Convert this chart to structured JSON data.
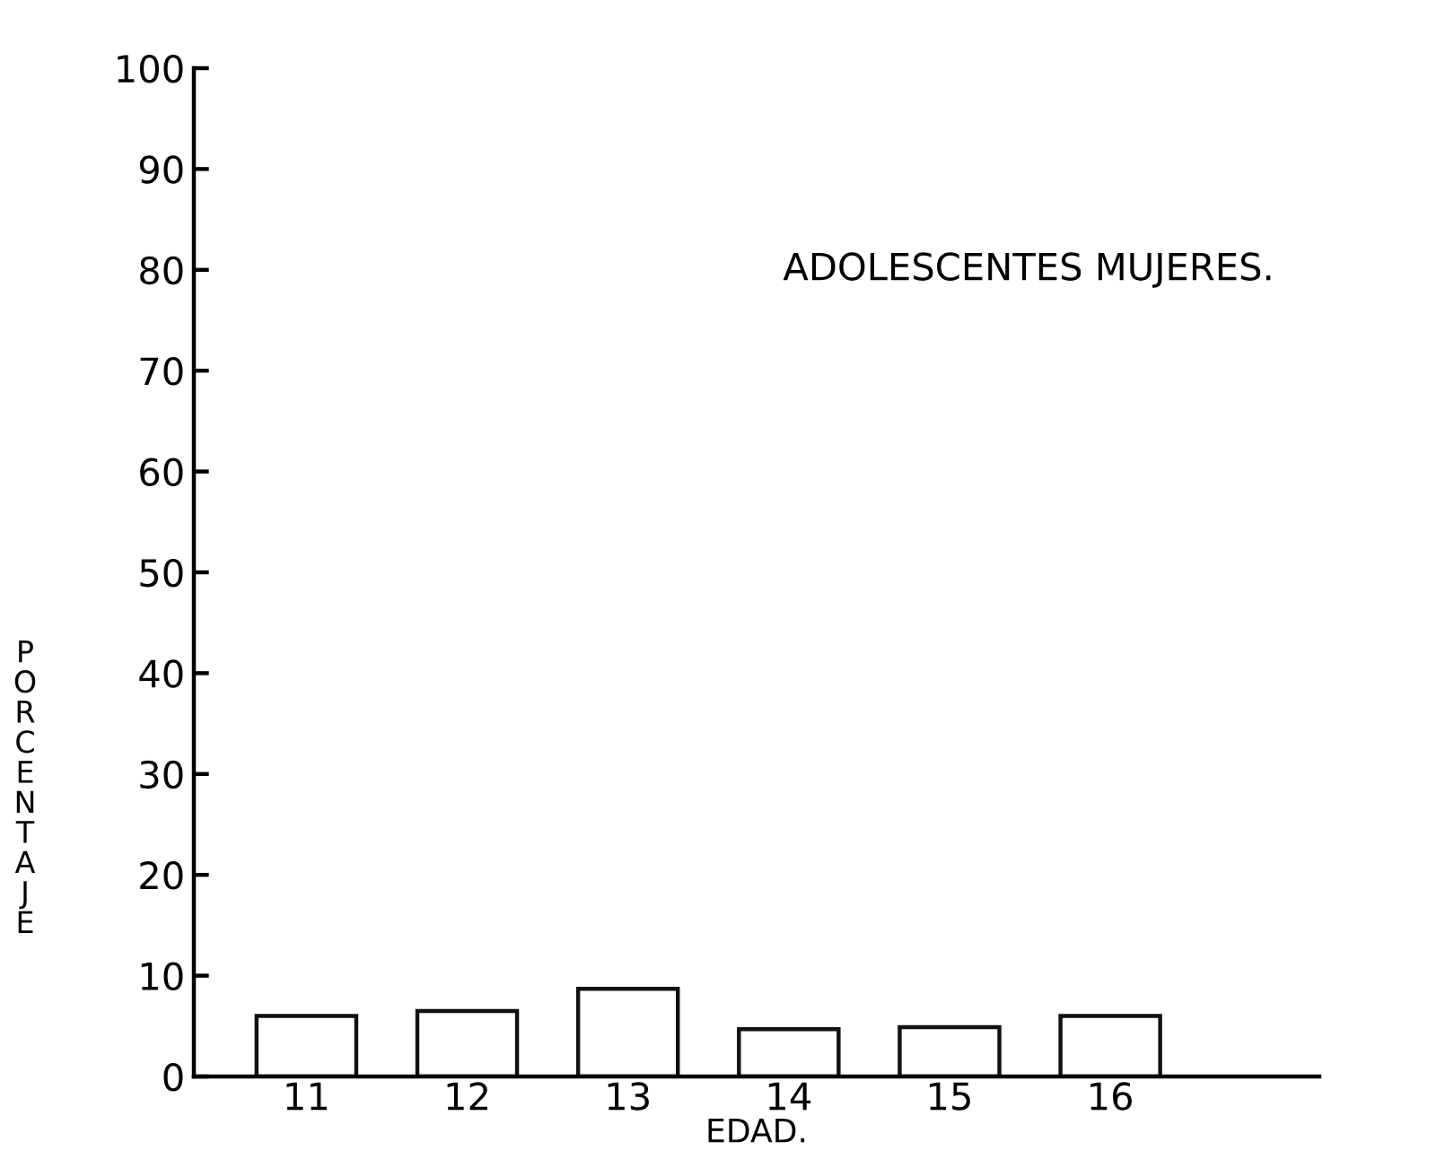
{
  "chart_data": {
    "type": "bar",
    "title": "ADOLESCENTES MUJERES.",
    "xlabel": "EDAD.",
    "ylabel": "PORCENTAJE",
    "categories": [
      "11",
      "12",
      "13",
      "14",
      "15",
      "16"
    ],
    "values": [
      6.0,
      6.5,
      8.7,
      4.7,
      4.9,
      6.0
    ],
    "color": "#ffffff",
    "ylim": [
      0,
      100
    ],
    "yticks": [
      0,
      10,
      20,
      30,
      40,
      50,
      60,
      70,
      80,
      90,
      100
    ],
    "grid": false
  }
}
